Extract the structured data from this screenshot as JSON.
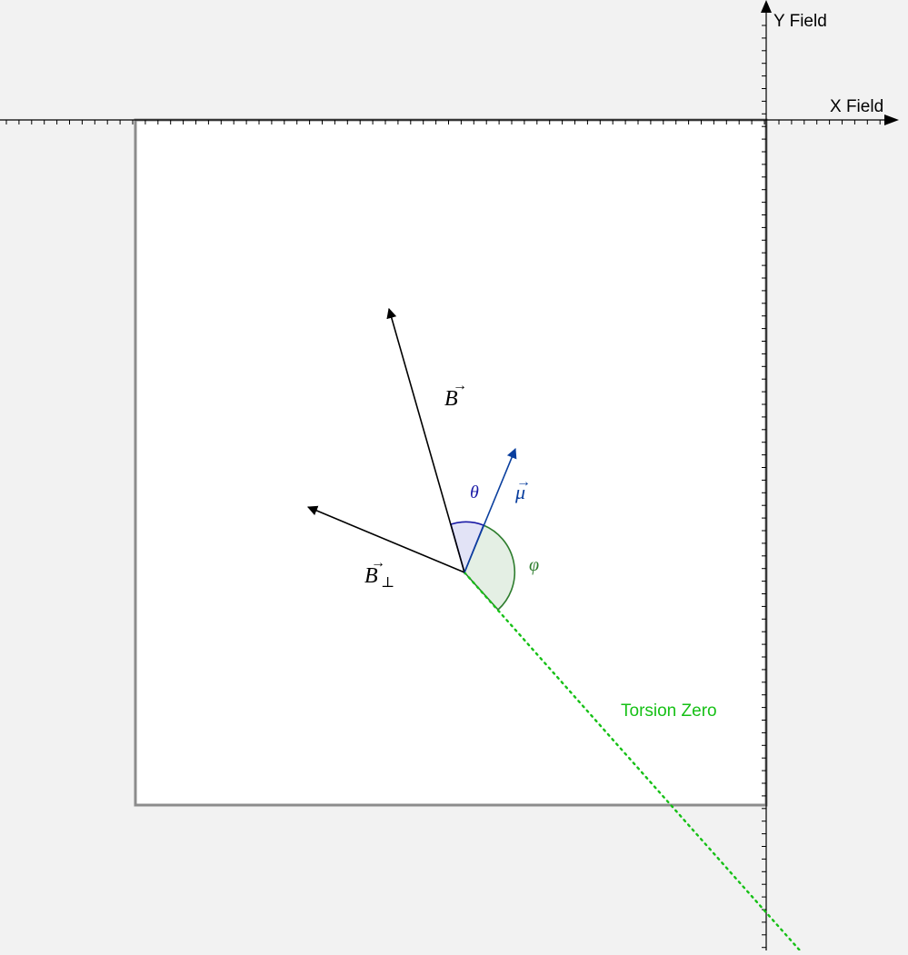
{
  "axes": {
    "x_label": "X Field",
    "y_label": "Y Field"
  },
  "vectors": {
    "b": {
      "symbol": "B",
      "arrow_accent": "→",
      "color": "#000000"
    },
    "b_perp": {
      "symbol": "B",
      "subscript": "⊥",
      "arrow_accent": "→",
      "color": "#000000"
    },
    "mu": {
      "symbol": "μ",
      "arrow_accent": "→",
      "color": "#0a3f9e"
    }
  },
  "angles": {
    "theta": {
      "symbol": "θ",
      "color": "#1a1aa6",
      "fill": "#e2e3f6"
    },
    "phi": {
      "symbol": "φ",
      "color": "#2e7d2e",
      "fill": "#e4efe4"
    }
  },
  "torsion_line": {
    "label": "Torsion Zero",
    "color": "#16c016"
  },
  "colors": {
    "background": "#f2f2f2",
    "panel": "#ffffff",
    "panel_border": "#8c8c8c"
  },
  "icons": [
    "x-axis-arrow-icon",
    "y-axis-arrow-icon"
  ]
}
